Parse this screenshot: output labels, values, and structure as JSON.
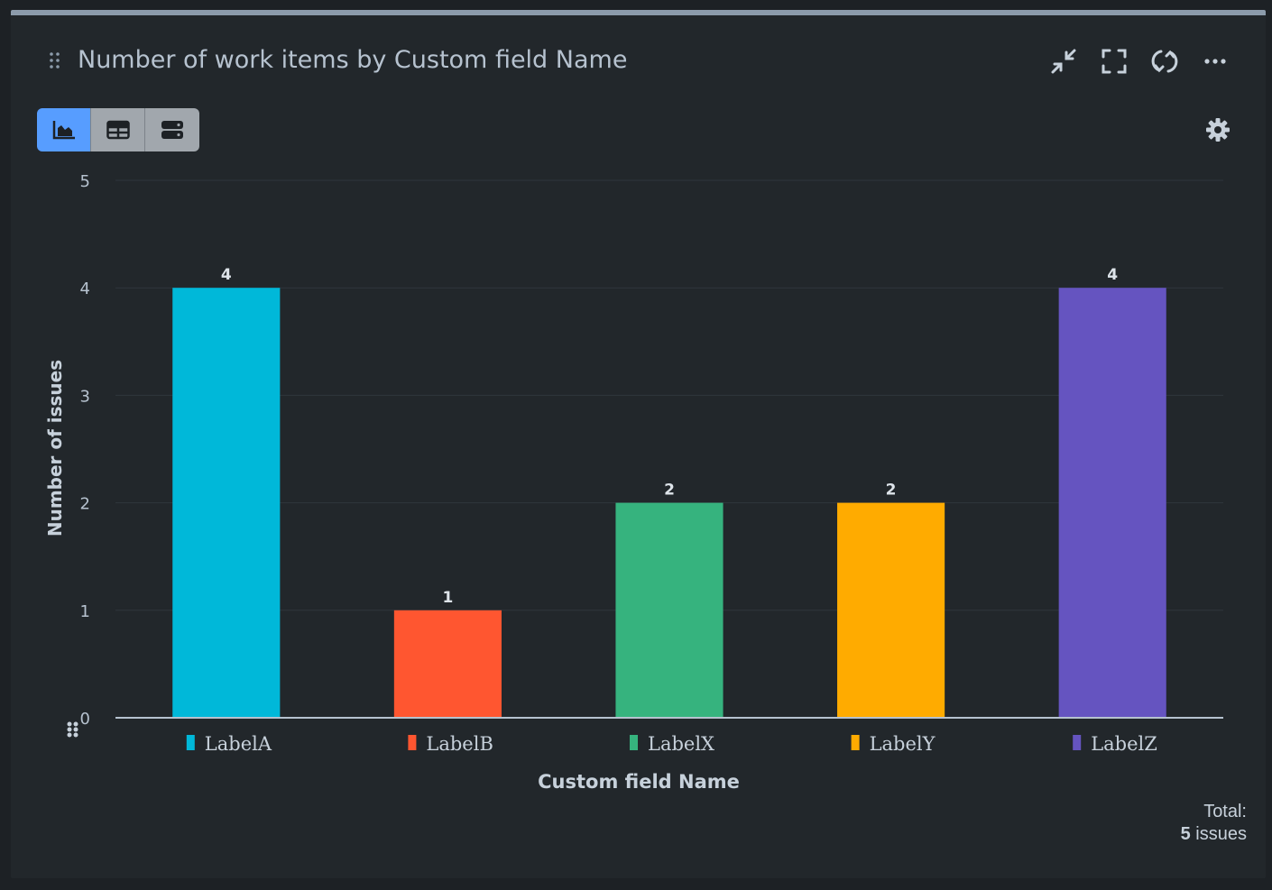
{
  "header": {
    "title": "Number of work items by Custom field Name"
  },
  "header_icons": [
    "drag-handle-icon",
    "collapse-icon",
    "fullscreen-icon",
    "refresh-icon",
    "more-icon"
  ],
  "view_toggle": [
    "bar-chart-icon",
    "table-icon",
    "list-icon"
  ],
  "total": {
    "label": "Total:",
    "count": "5",
    "unit": "issues"
  },
  "colors": {
    "background": "#22272b",
    "active_toggle": "#579dff"
  },
  "chart_data": {
    "type": "bar",
    "title": "Number of work items by Custom field Name",
    "xlabel": "Custom field Name",
    "ylabel": "Number of issues",
    "ylim": [
      0,
      5
    ],
    "yticks": [
      0,
      1,
      2,
      3,
      4,
      5
    ],
    "grid": true,
    "legend": "below-bars",
    "categories": [
      "LabelA",
      "LabelB",
      "LabelX",
      "LabelY",
      "LabelZ"
    ],
    "values": [
      4,
      1,
      2,
      2,
      4
    ],
    "colors": [
      "#00b8d9",
      "#ff5630",
      "#36b37e",
      "#ffab00",
      "#6554c0"
    ]
  }
}
